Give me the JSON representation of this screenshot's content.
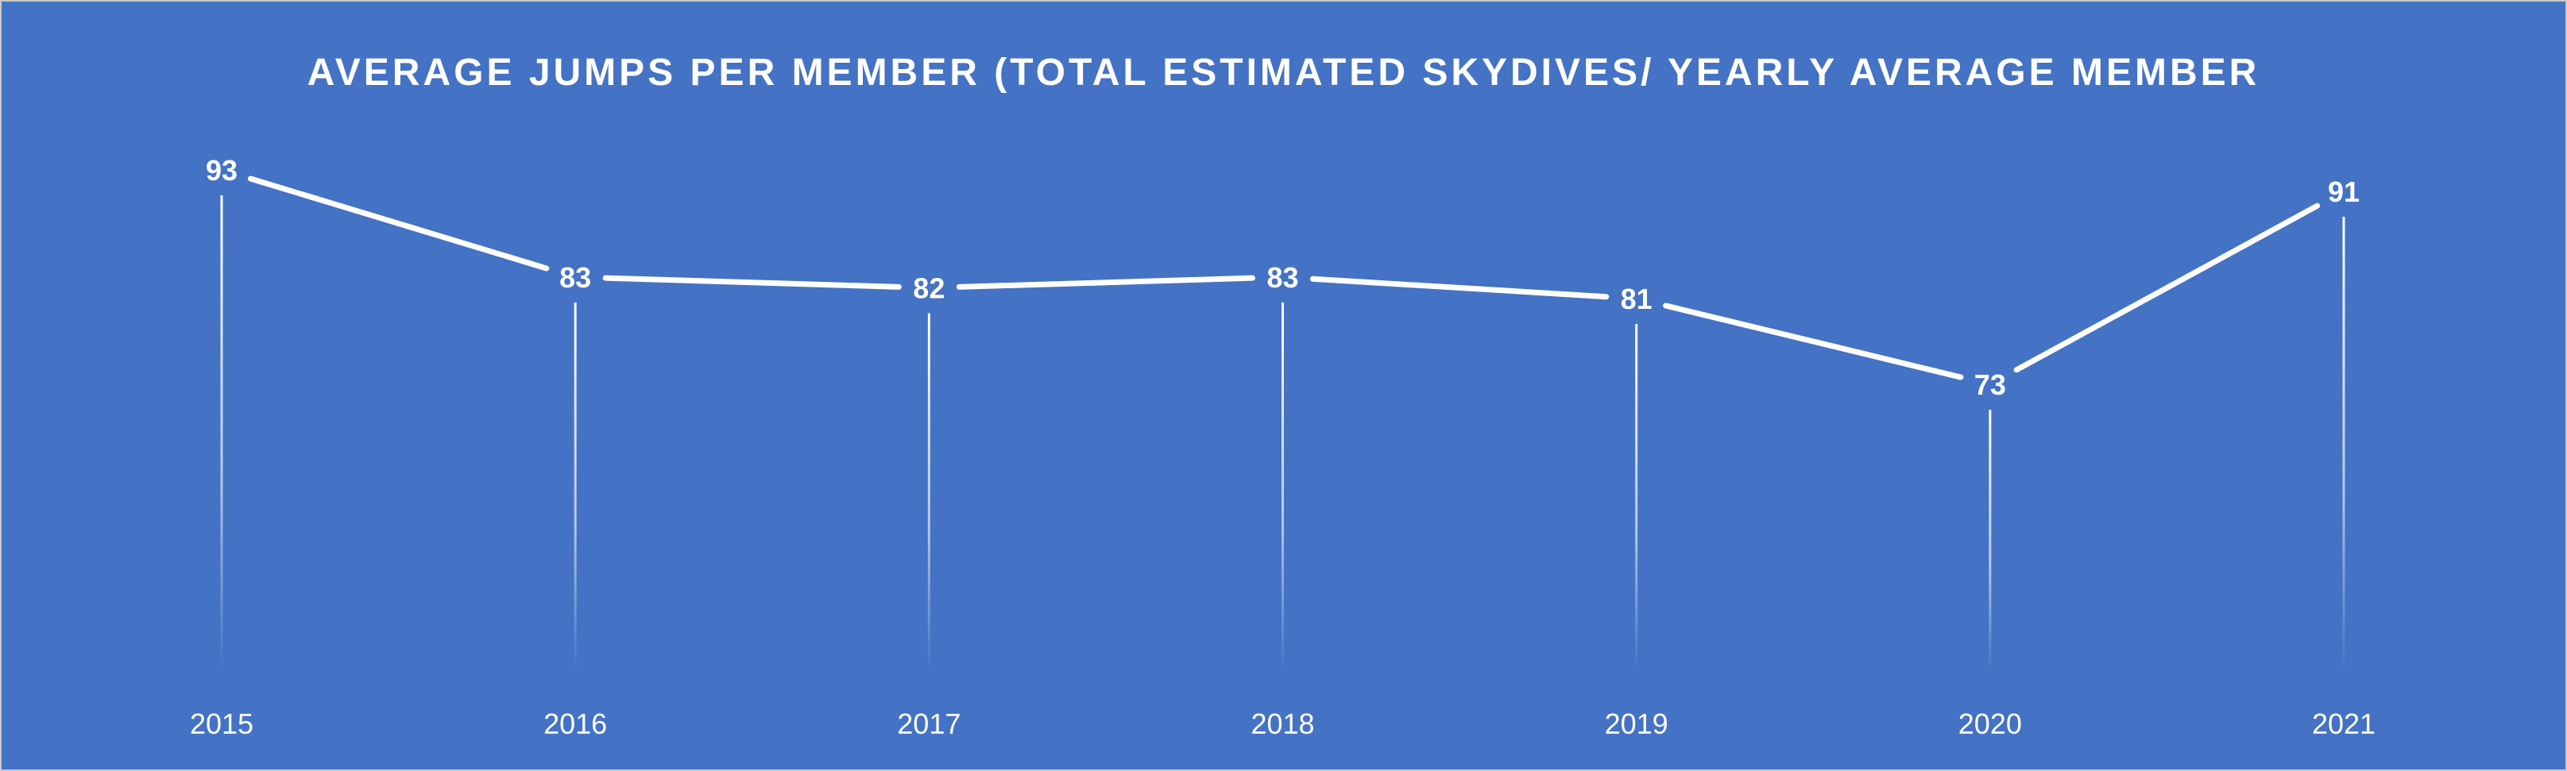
{
  "chart_data": {
    "type": "line",
    "title": "AVERAGE JUMPS PER MEMBER (TOTAL ESTIMATED SKYDIVES/ YEARLY AVERAGE MEMBER",
    "categories": [
      "2015",
      "2016",
      "2017",
      "2018",
      "2019",
      "2020",
      "2021"
    ],
    "values": [
      93,
      83,
      82,
      83,
      81,
      73,
      91
    ],
    "data_labels": [
      "93",
      "83",
      "82",
      "83",
      "81",
      "73",
      "91"
    ],
    "xlabel": "",
    "ylabel": "",
    "drop_lines": true,
    "grid": false,
    "legend": "none",
    "colors": {
      "background": "#4472c4",
      "line": "#ffffff",
      "text": "#ffffff"
    }
  }
}
